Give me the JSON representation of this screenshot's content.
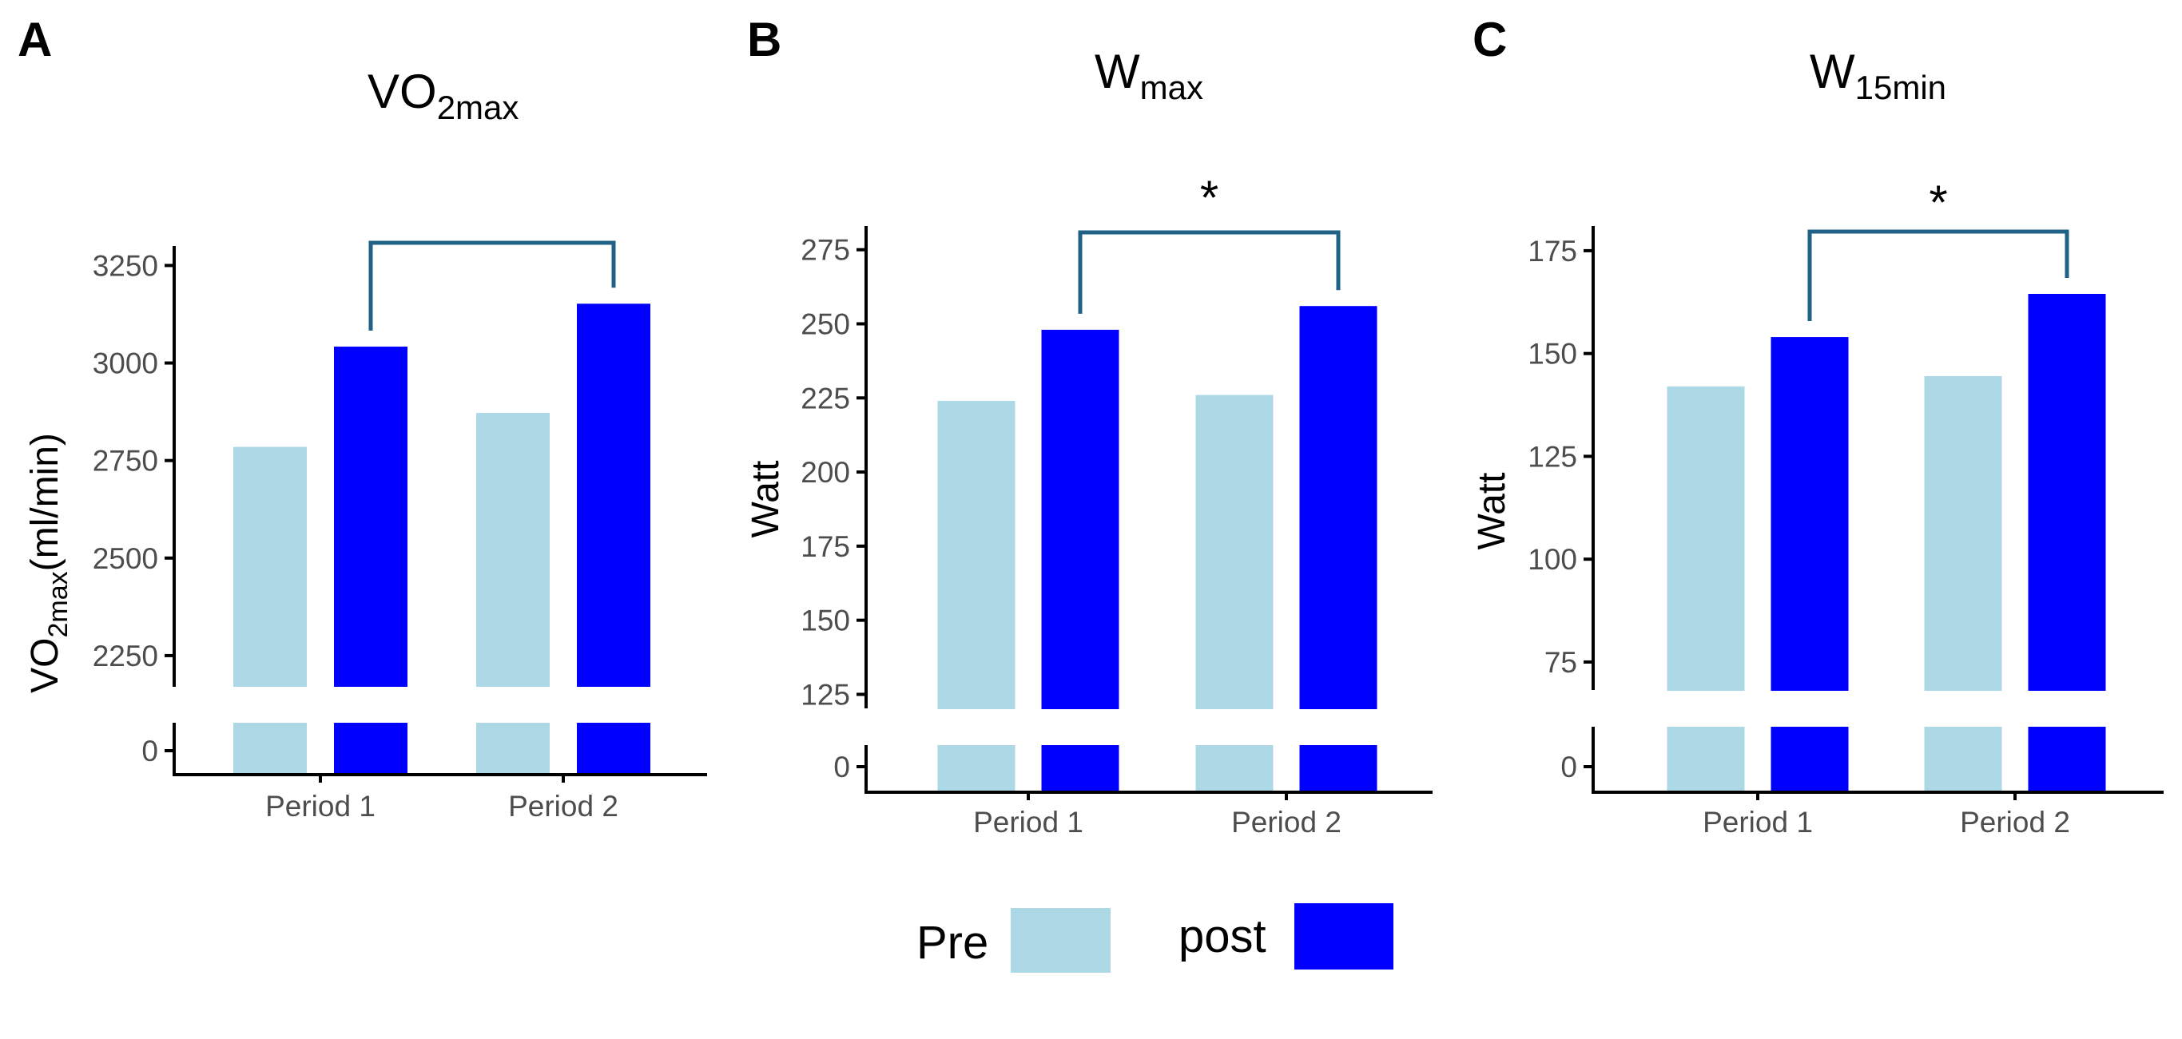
{
  "legend": {
    "items": [
      {
        "label": "Pre",
        "color": "#add8e6"
      },
      {
        "label": "post",
        "color": "#0000ff"
      }
    ]
  },
  "chart_data": [
    {
      "type": "bar",
      "panel": "A",
      "title": {
        "main": "VO",
        "sub": "2max"
      },
      "ylabel": {
        "main": "VO",
        "sub": "2max",
        "rest": "(ml/min)"
      },
      "categories": [
        "Period 1",
        "Period 2"
      ],
      "series": [
        {
          "name": "Pre",
          "values": [
            2785,
            2872
          ],
          "color": "#add8e6"
        },
        {
          "name": "post",
          "values": [
            3042,
            3152
          ],
          "color": "#0000ff"
        }
      ],
      "ylim": [
        2170,
        3300
      ],
      "yticks": [
        2250,
        2500,
        2750,
        3000,
        3250
      ],
      "ytick_labels": [
        "2250",
        "2500",
        "2750",
        "3000",
        "3250"
      ],
      "axis_break": true,
      "lower_tick": "0",
      "bracket": {
        "from": "Period 1",
        "to": "Period 2",
        "label": ""
      }
    },
    {
      "type": "bar",
      "panel": "B",
      "title": {
        "main": "W",
        "sub": "max"
      },
      "ylabel": {
        "main": "Watt",
        "sub": "",
        "rest": ""
      },
      "categories": [
        "Period 1",
        "Period 2"
      ],
      "series": [
        {
          "name": "Pre",
          "values": [
            224,
            226
          ],
          "color": "#add8e6"
        },
        {
          "name": "post",
          "values": [
            248,
            256
          ],
          "color": "#0000ff"
        }
      ],
      "ylim": [
        120,
        283
      ],
      "yticks": [
        125,
        150,
        175,
        200,
        225,
        250,
        275
      ],
      "ytick_labels": [
        "125",
        "150",
        "175",
        "200",
        "225",
        "250",
        "275"
      ],
      "axis_break": true,
      "lower_tick": "0",
      "bracket": {
        "from": "Period 1",
        "to": "Period 2",
        "label": "*"
      }
    },
    {
      "type": "bar",
      "panel": "C",
      "title": {
        "main": "W",
        "sub": "15min"
      },
      "ylabel": {
        "main": "Watt",
        "sub": "",
        "rest": ""
      },
      "categories": [
        "Period 1",
        "Period 2"
      ],
      "series": [
        {
          "name": "Pre",
          "values": [
            142,
            144.5
          ],
          "color": "#add8e6"
        },
        {
          "name": "post",
          "values": [
            154,
            164.5
          ],
          "color": "#0000ff"
        }
      ],
      "ylim": [
        68,
        181
      ],
      "yticks": [
        75,
        100,
        125,
        150,
        175
      ],
      "ytick_labels": [
        "75",
        "100",
        "125",
        "150",
        "175"
      ],
      "axis_break": true,
      "lower_tick": "0",
      "bracket": {
        "from": "Period 1",
        "to": "Period 2",
        "label": "*"
      }
    }
  ]
}
